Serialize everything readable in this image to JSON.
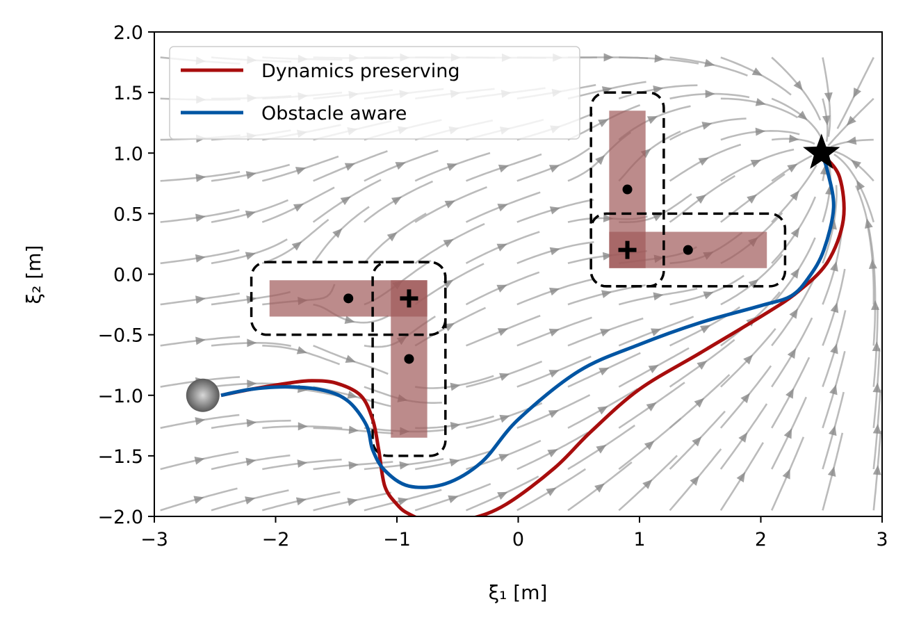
{
  "chart_data": {
    "type": "line",
    "title": "",
    "xlabel": "ξ₁ [m]",
    "ylabel": "ξ₂ [m]",
    "xlim": [
      -3,
      3
    ],
    "ylim": [
      -2,
      2
    ],
    "xticks": [
      -3,
      -2,
      -1,
      0,
      1,
      2,
      3
    ],
    "xtick_labels": [
      "−3",
      "−2",
      "−1",
      "0",
      "1",
      "2",
      "3"
    ],
    "yticks": [
      2.0,
      1.5,
      1.0,
      0.5,
      0.0,
      -0.5,
      -1.0,
      -1.5,
      -2.0
    ],
    "ytick_labels": [
      "2.0",
      "1.5",
      "1.0",
      "0.5",
      "0.0",
      "−0.5",
      "−1.0",
      "−1.5",
      "−2.0"
    ],
    "grid": false,
    "legend_position": "top-left",
    "series": [
      {
        "name": "Dynamics preserving",
        "color": "#a80d0d",
        "points": [
          [
            -2.45,
            -1.0
          ],
          [
            -2.2,
            -0.95
          ],
          [
            -1.9,
            -0.9
          ],
          [
            -1.7,
            -0.88
          ],
          [
            -1.5,
            -0.9
          ],
          [
            -1.3,
            -1.0
          ],
          [
            -1.2,
            -1.2
          ],
          [
            -1.15,
            -1.45
          ],
          [
            -1.1,
            -1.75
          ],
          [
            -1.0,
            -1.9
          ],
          [
            -0.9,
            -1.98
          ],
          [
            -0.7,
            -2.05
          ],
          [
            -0.4,
            -2.02
          ],
          [
            -0.1,
            -1.9
          ],
          [
            0.3,
            -1.6
          ],
          [
            0.6,
            -1.3
          ],
          [
            1.0,
            -0.95
          ],
          [
            1.5,
            -0.65
          ],
          [
            2.0,
            -0.35
          ],
          [
            2.3,
            -0.15
          ],
          [
            2.55,
            0.1
          ],
          [
            2.68,
            0.45
          ],
          [
            2.65,
            0.8
          ],
          [
            2.52,
            0.98
          ]
        ]
      },
      {
        "name": "Obstacle aware",
        "color": "#0055a3",
        "points": [
          [
            -2.45,
            -1.0
          ],
          [
            -2.2,
            -0.95
          ],
          [
            -1.9,
            -0.93
          ],
          [
            -1.6,
            -0.96
          ],
          [
            -1.4,
            -1.05
          ],
          [
            -1.25,
            -1.25
          ],
          [
            -1.2,
            -1.45
          ],
          [
            -1.1,
            -1.62
          ],
          [
            -0.9,
            -1.75
          ],
          [
            -0.6,
            -1.73
          ],
          [
            -0.3,
            -1.55
          ],
          [
            0.0,
            -1.2
          ],
          [
            0.5,
            -0.8
          ],
          [
            1.0,
            -0.58
          ],
          [
            1.5,
            -0.4
          ],
          [
            2.0,
            -0.26
          ],
          [
            2.25,
            -0.18
          ],
          [
            2.4,
            -0.02
          ],
          [
            2.52,
            0.2
          ],
          [
            2.6,
            0.55
          ],
          [
            2.55,
            0.85
          ],
          [
            2.5,
            1.0
          ]
        ]
      }
    ],
    "obstacles": [
      {
        "x": [
          -2.05,
          -0.75
        ],
        "y": [
          -0.35,
          -0.05
        ],
        "center": [
          -1.4,
          -0.2
        ]
      },
      {
        "x": [
          -1.05,
          -0.75
        ],
        "y": [
          -1.35,
          -0.05
        ],
        "center": [
          -0.9,
          -0.7
        ]
      },
      {
        "x": [
          0.75,
          1.05
        ],
        "y": [
          0.05,
          1.35
        ],
        "center": [
          0.9,
          0.7
        ]
      },
      {
        "x": [
          0.75,
          2.05
        ],
        "y": [
          0.05,
          0.35
        ],
        "center": [
          1.4,
          0.2
        ]
      }
    ],
    "boundaries": [
      {
        "x": [
          -2.2,
          -0.6
        ],
        "y": [
          -0.5,
          0.1
        ]
      },
      {
        "x": [
          -1.2,
          -0.6
        ],
        "y": [
          -1.5,
          0.1
        ]
      },
      {
        "x": [
          0.6,
          1.2
        ],
        "y": [
          -0.1,
          1.5
        ]
      },
      {
        "x": [
          0.6,
          2.2
        ],
        "y": [
          -0.1,
          0.5
        ]
      }
    ],
    "reference_points": [
      [
        -0.9,
        -0.2
      ],
      [
        0.9,
        0.2
      ]
    ],
    "goal": [
      2.5,
      1.0
    ],
    "start": [
      -2.6,
      -1.0
    ],
    "obstacle_color": "#a05a5a",
    "stream_color": "#9e9e9e"
  }
}
